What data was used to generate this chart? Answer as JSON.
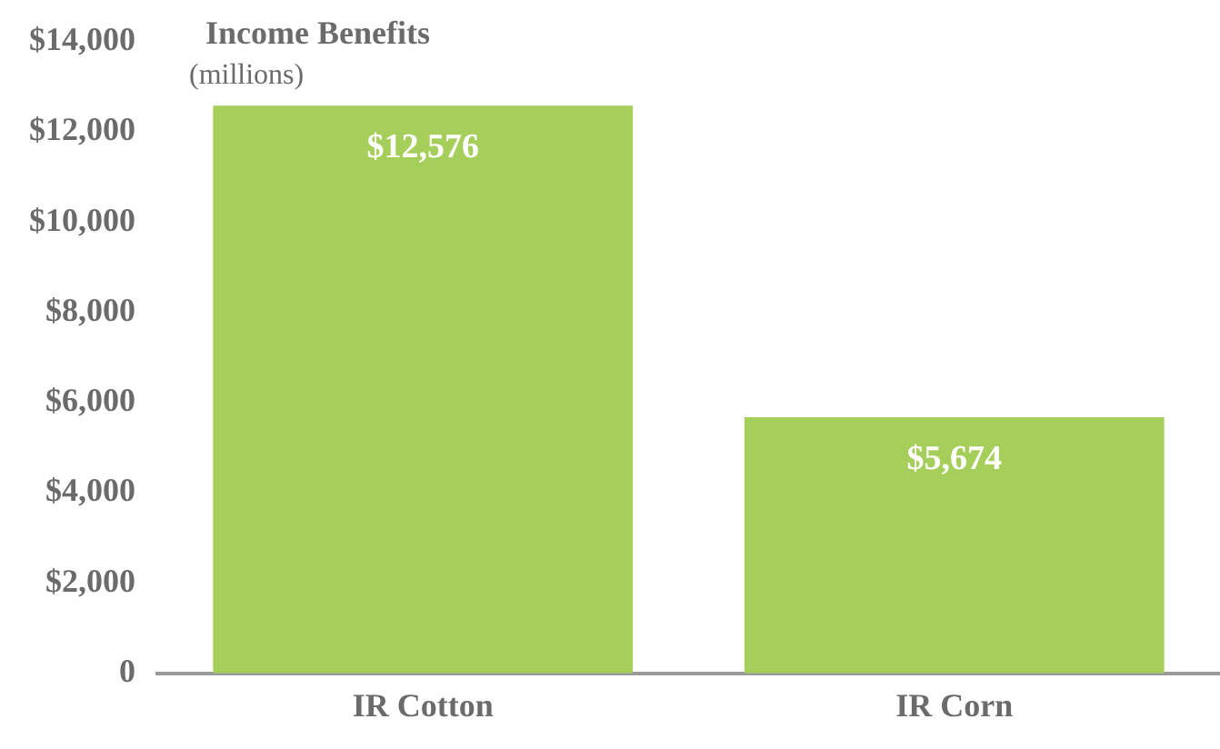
{
  "chart_data": {
    "type": "bar",
    "title": "Income Benefits",
    "subtitle": "(millions)",
    "categories": [
      "IR Cotton",
      "IR Corn"
    ],
    "values": [
      12576,
      5674
    ],
    "color": "#a5cf5a",
    "value_labels": [
      "$12,576",
      "$5,674"
    ],
    "ylim": [
      0,
      14000
    ],
    "yticks": [
      0,
      {
        "value": 2000,
        "label": "$2,000"
      },
      {
        "value": 4000,
        "label": "$4,000"
      },
      {
        "value": 6000,
        "label": "$6,000"
      },
      {
        "value": 8000,
        "label": "$8,000"
      },
      {
        "value": 10000,
        "label": "$10,000"
      },
      {
        "value": 12000,
        "label": "$12,000"
      },
      {
        "value": 14000,
        "label": "$14,000"
      }
    ],
    "grid": false,
    "legend": false
  }
}
